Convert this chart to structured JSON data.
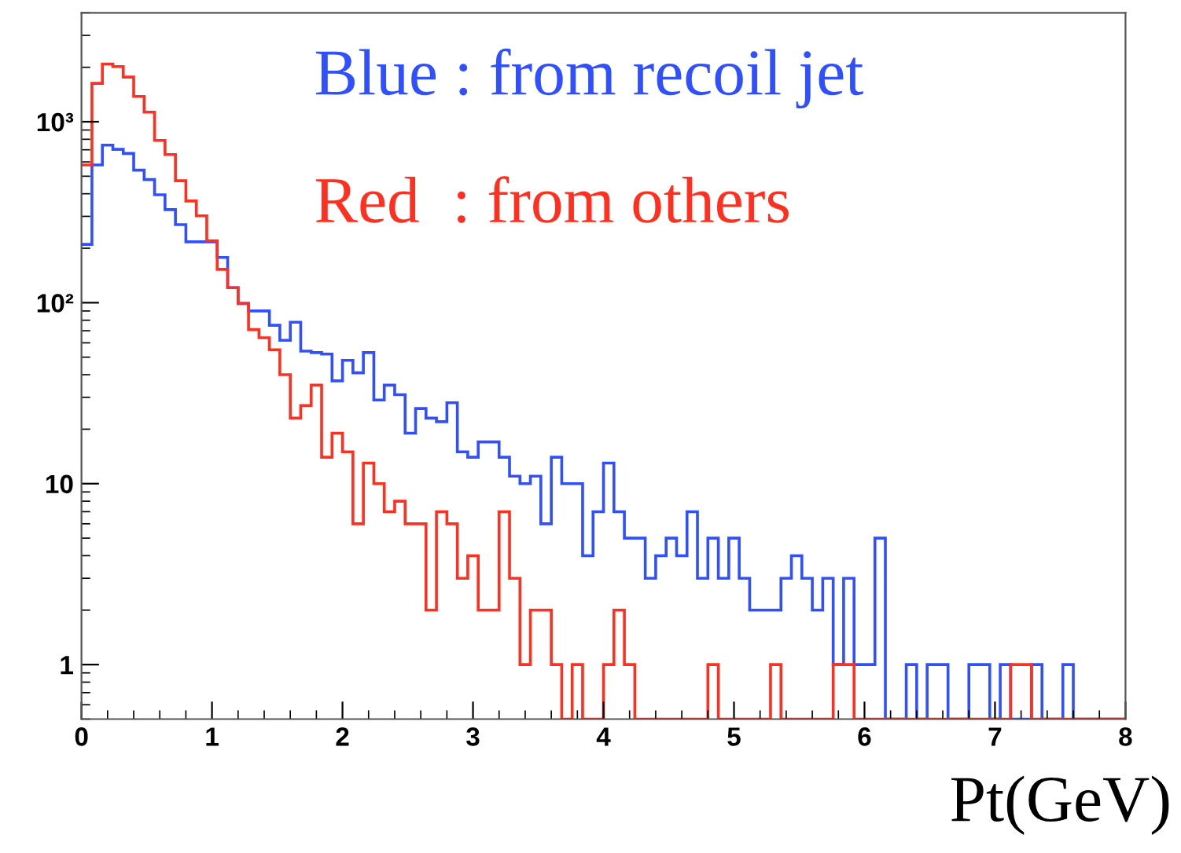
{
  "chart_data": {
    "type": "histogram",
    "bins": [
      0,
      0.08,
      0.16,
      0.24,
      0.32,
      0.4,
      0.48,
      0.56,
      0.64,
      0.72,
      0.8,
      0.88,
      0.96,
      1.04,
      1.12,
      1.2,
      1.28,
      1.36,
      1.44,
      1.52,
      1.6,
      1.68,
      1.76,
      1.84,
      1.92,
      2,
      2.08,
      2.16,
      2.24,
      2.32,
      2.4,
      2.48,
      2.56,
      2.64,
      2.72,
      2.8,
      2.88,
      2.96,
      3.04,
      3.12,
      3.2,
      3.28,
      3.36,
      3.44,
      3.52,
      3.6,
      3.68,
      3.76,
      3.84,
      3.92,
      4,
      4.08,
      4.16,
      4.24,
      4.32,
      4.4,
      4.48,
      4.56,
      4.64,
      4.72,
      4.8,
      4.88,
      4.96,
      5.04,
      5.12,
      5.2,
      5.28,
      5.36,
      5.44,
      5.52,
      5.6,
      5.68,
      5.76,
      5.84,
      5.92,
      6,
      6.08,
      6.16,
      6.24,
      6.32,
      6.4,
      6.48,
      6.56,
      6.64,
      6.72,
      6.8,
      6.88,
      6.96,
      7.04,
      7.12,
      7.2,
      7.28,
      7.36,
      7.44,
      7.52,
      7.6,
      7.68,
      7.76,
      7.84,
      7.92,
      8
    ],
    "series": [
      {
        "color": "#3050ff",
        "values": [
          210,
          577,
          743,
          704,
          668,
          540,
          479,
          395,
          327,
          270,
          217,
          217,
          217,
          178,
          121,
          99,
          90,
          90,
          75,
          62,
          78,
          54,
          53,
          52,
          37,
          48,
          41,
          53,
          29,
          35,
          31,
          19,
          26,
          23,
          22,
          28,
          15,
          14,
          17,
          17,
          14,
          11,
          10,
          11,
          6,
          14,
          10,
          10,
          4,
          7,
          13,
          7,
          5,
          5,
          3,
          4,
          5,
          4,
          7,
          3,
          5,
          3,
          5,
          3,
          2,
          2,
          2,
          3,
          4,
          3,
          2,
          3,
          1,
          3,
          1,
          1,
          5,
          null,
          null,
          1,
          null,
          1,
          1,
          null,
          null,
          1,
          1,
          null,
          1,
          null,
          null,
          1,
          null,
          null,
          1,
          null,
          null,
          null,
          null,
          null
        ]
      },
      {
        "color": "#ff3020",
        "values": [
          577,
          1630,
          2085,
          2017,
          1766,
          1380,
          1130,
          789,
          659,
          472,
          365,
          302,
          220,
          153,
          121,
          99,
          71,
          64,
          55,
          40,
          23,
          27,
          35,
          14,
          19,
          15,
          6,
          13,
          10,
          7,
          8,
          6,
          6,
          2,
          7,
          6,
          3,
          4,
          2,
          2,
          7,
          3,
          1,
          2,
          2,
          1,
          null,
          1,
          null,
          null,
          1,
          2,
          1,
          null,
          null,
          null,
          null,
          null,
          null,
          null,
          1,
          null,
          null,
          null,
          null,
          null,
          1,
          null,
          null,
          null,
          null,
          null,
          1,
          1,
          null,
          null,
          null,
          null,
          null,
          null,
          null,
          null,
          null,
          null,
          null,
          null,
          null,
          null,
          null,
          1,
          1,
          null,
          null,
          null,
          null,
          null,
          null,
          null,
          null,
          null
        ]
      }
    ],
    "annotations": [
      "Blue : from recoil jet",
      "Red  : from others"
    ],
    "xlabel": "Pt(GeV)",
    "xlim": [
      0,
      8
    ],
    "xticks": [
      0,
      1,
      2,
      3,
      4,
      5,
      6,
      7,
      8
    ],
    "log": true,
    "ylim": [
      0.5,
      4000
    ],
    "yticks": [
      1,
      10,
      {
        "value": 100,
        "label": "10²"
      },
      {
        "value": 1000,
        "label": "10³"
      }
    ],
    "grid": false
  }
}
